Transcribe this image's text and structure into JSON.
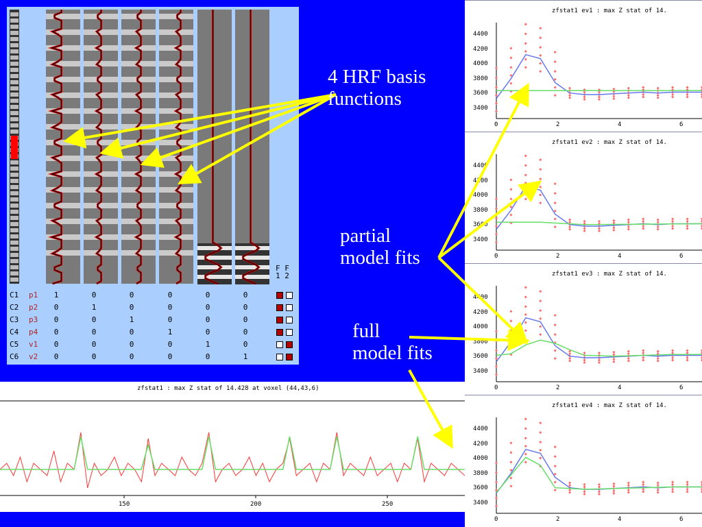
{
  "design": {
    "contrast_header": [
      "F",
      "F"
    ],
    "contrast_index": [
      "1",
      "2"
    ],
    "rows": [
      {
        "c": "C1",
        "name": "p1",
        "values": [
          "1",
          "0",
          "0",
          "0",
          "0",
          "0"
        ],
        "f": [
          true,
          false
        ]
      },
      {
        "c": "C2",
        "name": "p2",
        "values": [
          "0",
          "1",
          "0",
          "0",
          "0",
          "0"
        ],
        "f": [
          true,
          false
        ]
      },
      {
        "c": "C3",
        "name": "p3",
        "values": [
          "0",
          "0",
          "1",
          "0",
          "0",
          "0"
        ],
        "f": [
          true,
          false
        ]
      },
      {
        "c": "C4",
        "name": "p4",
        "values": [
          "0",
          "0",
          "0",
          "1",
          "0",
          "0"
        ],
        "f": [
          true,
          false
        ]
      },
      {
        "c": "C5",
        "name": "v1",
        "values": [
          "0",
          "0",
          "0",
          "0",
          "1",
          "0"
        ],
        "f": [
          false,
          true
        ]
      },
      {
        "c": "C6",
        "name": "v2",
        "values": [
          "0",
          "0",
          "0",
          "0",
          "0",
          "1"
        ],
        "f": [
          false,
          true
        ]
      }
    ]
  },
  "annotations": {
    "hrf": "4 HRF basis\nfunctions",
    "partial": "partial\nmodel fits",
    "full": "full\nmodel fits"
  },
  "colors": {
    "background": "#0000ff",
    "arrow": "#ffff00",
    "data": "#ff3333",
    "full_fit": "#66dd66",
    "partial_fit": "#6677ee"
  },
  "timeseries": {
    "title": "zfstat1 : max Z stat of 14.428 at voxel (44,43,6)",
    "x_ticks": [
      "150",
      "200",
      "250"
    ]
  },
  "peri_plots": [
    {
      "title": "zfstat1 ev1 : max Z stat of 14."
    },
    {
      "title": "zfstat1 ev2 : max Z stat of 14."
    },
    {
      "title": "zfstat1 ev3 : max Z stat of 14."
    },
    {
      "title": "zfstat1 ev4 : max Z stat of 14."
    }
  ],
  "peri_y_ticks": [
    "4400",
    "4200",
    "4000",
    "3800",
    "3600",
    "3400"
  ],
  "peri_x_ticks": [
    "0",
    "2",
    "4",
    "6"
  ],
  "chart_data": [
    {
      "type": "line",
      "title": "zfstat1 : max Z stat of 14.428 at voxel (44,43,6)",
      "xlim": [
        110,
        280
      ],
      "x_ticks": [
        150,
        200,
        250
      ],
      "series": [
        {
          "values": [
            0,
            1,
            -1,
            2,
            -2,
            1,
            0,
            -1,
            3,
            -2,
            1,
            0,
            6,
            -3,
            1,
            -1,
            0,
            2,
            -1,
            1,
            0,
            -2,
            5,
            -1,
            1,
            0,
            -1,
            2,
            0,
            -1,
            1,
            6,
            -2,
            0,
            1,
            -1,
            0,
            2,
            -1,
            1,
            -2,
            0,
            1,
            5,
            -1,
            0,
            1,
            -2,
            1,
            0,
            6,
            -1,
            1,
            0,
            -1,
            2,
            -1,
            0,
            1,
            -2,
            1,
            0,
            5,
            -2,
            1,
            0,
            -1,
            1,
            0,
            -1
          ]
        },
        {
          "values": [
            0,
            0,
            0,
            0,
            0,
            0,
            0,
            0,
            0,
            0,
            0,
            0,
            4,
            0,
            0,
            0,
            0,
            0,
            0,
            0,
            0,
            0,
            3,
            0,
            0,
            0,
            0,
            0,
            0,
            0,
            0,
            4,
            0,
            0,
            0,
            0,
            0,
            0,
            0,
            0,
            0,
            0,
            0,
            4,
            0,
            0,
            0,
            0,
            0,
            0,
            4,
            0,
            0,
            0,
            0,
            0,
            0,
            0,
            0,
            0,
            0,
            0,
            4,
            0,
            0,
            0,
            0,
            0,
            0,
            0
          ]
        }
      ]
    },
    {
      "type": "scatter",
      "title": "zfstat1 ev1 : max Z stat of 14.",
      "ylim": [
        3300,
        4500
      ],
      "xlim": [
        0,
        7
      ],
      "series": [
        {
          "x": [
            0,
            0.5,
            1,
            1.5,
            2,
            2.5,
            3,
            3.5,
            4,
            4.5,
            5,
            5.5,
            6,
            6.5,
            7
          ],
          "values": [
            3550,
            3800,
            4100,
            4050,
            3750,
            3620,
            3600,
            3600,
            3610,
            3620,
            3630,
            3620,
            3630,
            3630,
            3630
          ]
        },
        {
          "x": [
            0,
            7
          ],
          "values": [
            3650,
            3650
          ]
        }
      ]
    },
    {
      "type": "scatter",
      "title": "zfstat1 ev2 : max Z stat of 14.",
      "ylim": [
        3300,
        4500
      ],
      "xlim": [
        0,
        7
      ],
      "series": [
        {
          "x": [
            0,
            0.5,
            1,
            1.5,
            2,
            2.5,
            3,
            3.5,
            4,
            4.5,
            5,
            5.5,
            6,
            6.5,
            7
          ],
          "values": [
            3560,
            3800,
            4100,
            4050,
            3750,
            3620,
            3600,
            3600,
            3610,
            3620,
            3630,
            3620,
            3630,
            3630,
            3630
          ]
        },
        {
          "x": [
            0,
            1.5,
            3,
            7
          ],
          "values": [
            3650,
            3650,
            3620,
            3630
          ]
        }
      ]
    },
    {
      "type": "scatter",
      "title": "zfstat1 ev3 : max Z stat of 14.",
      "ylim": [
        3300,
        4500
      ],
      "xlim": [
        0,
        7
      ],
      "series": [
        {
          "x": [
            0,
            0.5,
            1,
            1.5,
            2,
            2.5,
            3,
            3.5,
            4,
            4.5,
            5,
            5.5,
            6,
            6.5,
            7
          ],
          "values": [
            3550,
            3800,
            4100,
            4050,
            3750,
            3620,
            3600,
            3600,
            3610,
            3620,
            3630,
            3620,
            3630,
            3630,
            3630
          ]
        },
        {
          "x": [
            0,
            0.5,
            1,
            1.5,
            2,
            2.5,
            3,
            4,
            5,
            6,
            7
          ],
          "values": [
            3630,
            3650,
            3760,
            3820,
            3780,
            3700,
            3630,
            3620,
            3630,
            3640,
            3640
          ]
        }
      ]
    },
    {
      "type": "scatter",
      "title": "zfstat1 ev4 : max Z stat of 14.",
      "ylim": [
        3300,
        4500
      ],
      "xlim": [
        0,
        7
      ],
      "series": [
        {
          "x": [
            0,
            0.5,
            1,
            1.5,
            2,
            2.5,
            3,
            3.5,
            4,
            4.5,
            5,
            5.5,
            6,
            6.5,
            7
          ],
          "values": [
            3550,
            3800,
            4100,
            4050,
            3750,
            3620,
            3600,
            3600,
            3610,
            3620,
            3630,
            3620,
            3630,
            3630,
            3630
          ]
        },
        {
          "x": [
            0,
            0.5,
            1,
            1.5,
            2,
            2.5,
            3,
            4,
            5,
            6,
            7
          ],
          "values": [
            3560,
            3780,
            4000,
            3900,
            3620,
            3610,
            3600,
            3610,
            3620,
            3630,
            3630
          ]
        }
      ]
    }
  ]
}
